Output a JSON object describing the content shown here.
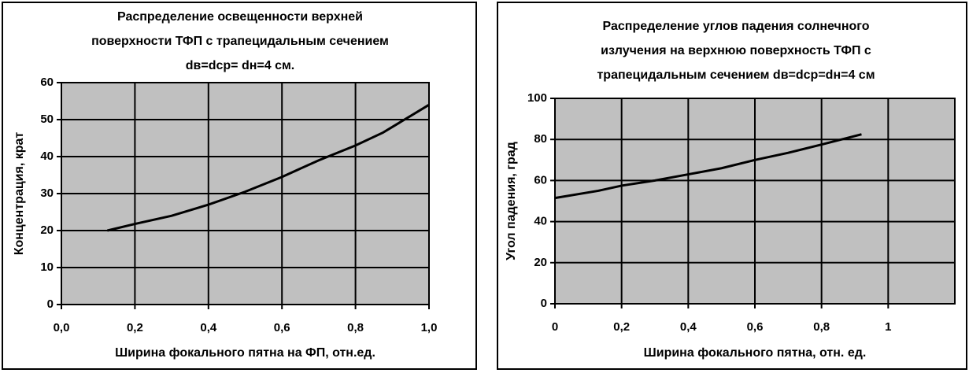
{
  "chart_data": [
    {
      "type": "line",
      "title": [
        "Распределение освещенности верхней",
        "поверхности ТФП с трапецидальным сечением",
        "dв=dср= dн=4 см."
      ],
      "xlabel": "Ширина фокального пятна на ФП, отн.ед.",
      "ylabel": "Концентрация, крат",
      "x": [
        0.125,
        0.2,
        0.3,
        0.4,
        0.5,
        0.6,
        0.7,
        0.8,
        0.875,
        0.95,
        1.0
      ],
      "values": [
        20,
        21.8,
        24,
        27,
        30.5,
        34.5,
        39,
        43,
        46.5,
        51,
        54
      ],
      "color": "#000000",
      "xlim": [
        0,
        1
      ],
      "xticks": [
        {
          "value": 0,
          "label": "0,0"
        },
        {
          "value": 0.2,
          "label": "0,2"
        },
        {
          "value": 0.4,
          "label": "0,4"
        },
        {
          "value": 0.6,
          "label": "0,6"
        },
        {
          "value": 0.8,
          "label": "0,8"
        },
        {
          "value": 1,
          "label": "1,0"
        }
      ],
      "ylim": [
        0,
        60
      ],
      "yticks": [
        0,
        10,
        20,
        30,
        40,
        50,
        60
      ],
      "grid": true
    },
    {
      "type": "line",
      "title": [
        "Распределение углов падения солнечного",
        "излучения на верхнюю поверхность ТФП с",
        "трапецидальным сечением dв=dср=dн=4 см"
      ],
      "xlabel": "Ширина фокального пятна, отн. ед.",
      "ylabel": "Угол падения, град",
      "x": [
        0,
        0.13,
        0.2,
        0.3,
        0.4,
        0.5,
        0.6,
        0.7,
        0.8,
        0.92
      ],
      "values": [
        51.5,
        55,
        57.5,
        60,
        63,
        66,
        70,
        73.5,
        77.5,
        82.5
      ],
      "color": "#000000",
      "xlim": [
        0,
        1.2
      ],
      "xticks": [
        0,
        {
          "value": 0.2,
          "label": "0,2"
        },
        {
          "value": 0.4,
          "label": "0,4"
        },
        {
          "value": 0.6,
          "label": "0,6"
        },
        {
          "value": 0.8,
          "label": "0,8"
        },
        1
      ],
      "ylim": [
        0,
        100
      ],
      "yticks": [
        0,
        20,
        40,
        60,
        80,
        100
      ],
      "grid": true
    }
  ]
}
